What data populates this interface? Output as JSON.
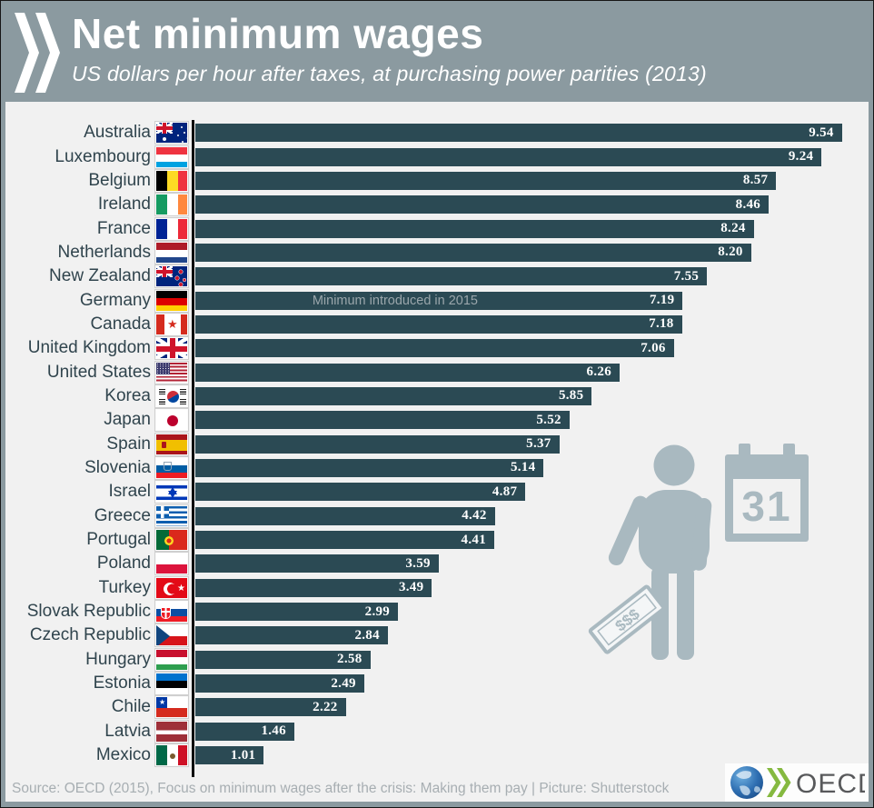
{
  "header": {
    "title": "Net minimum wages",
    "subtitle": "US dollars per hour after taxes, at purchasing power parities (2013)"
  },
  "chart_data": {
    "type": "bar",
    "orientation": "horizontal",
    "title": "Net minimum wages",
    "subtitle": "US dollars per hour after taxes, at purchasing power parities (2013)",
    "unit": "US dollars per hour",
    "xlim": [
      0,
      9.54
    ],
    "grid": false,
    "bar_color": "#2b4a54",
    "background": "#f1f1f1",
    "categories": [
      "Australia",
      "Luxembourg",
      "Belgium",
      "Ireland",
      "France",
      "Netherlands",
      "New Zealand",
      "Germany",
      "Canada",
      "United Kingdom",
      "United States",
      "Korea",
      "Japan",
      "Spain",
      "Slovenia",
      "Israel",
      "Greece",
      "Portugal",
      "Poland",
      "Turkey",
      "Slovak Republic",
      "Czech Republic",
      "Hungary",
      "Estonia",
      "Chile",
      "Latvia",
      "Mexico"
    ],
    "values": [
      9.54,
      9.24,
      8.57,
      8.46,
      8.24,
      8.2,
      7.55,
      7.19,
      7.18,
      7.06,
      6.26,
      5.85,
      5.52,
      5.37,
      5.14,
      4.87,
      4.42,
      4.41,
      3.59,
      3.49,
      2.99,
      2.84,
      2.58,
      2.49,
      2.22,
      1.46,
      1.01
    ],
    "value_labels": [
      "9.54",
      "9.24",
      "8.57",
      "8.46",
      "8.24",
      "8.20",
      "7.55",
      "7.19",
      "7.18",
      "7.06",
      "6.26",
      "5.85",
      "5.52",
      "5.37",
      "5.14",
      "4.87",
      "4.42",
      "4.41",
      "3.59",
      "3.49",
      "2.99",
      "2.84",
      "2.58",
      "2.49",
      "2.22",
      "1.46",
      "1.01"
    ],
    "flags": [
      "australia",
      "luxembourg",
      "belgium",
      "ireland",
      "france",
      "netherlands",
      "new-zealand",
      "germany",
      "canada",
      "united-kingdom",
      "united-states",
      "korea",
      "japan",
      "spain",
      "slovenia",
      "israel",
      "greece",
      "portugal",
      "poland",
      "turkey",
      "slovakia",
      "czechia",
      "hungary",
      "estonia",
      "chile",
      "latvia",
      "mexico"
    ],
    "annotations": [
      {
        "index": 7,
        "category": "Germany",
        "text": "Minimum introduced in 2015"
      }
    ]
  },
  "illustration": {
    "calendar_day": "31",
    "money_label": "$$$"
  },
  "footer": {
    "source": "Source: OECD (2015), Focus on minimum wages after the crisis: Making them pay | Picture: Shutterstock",
    "logo_text": "OECD"
  }
}
